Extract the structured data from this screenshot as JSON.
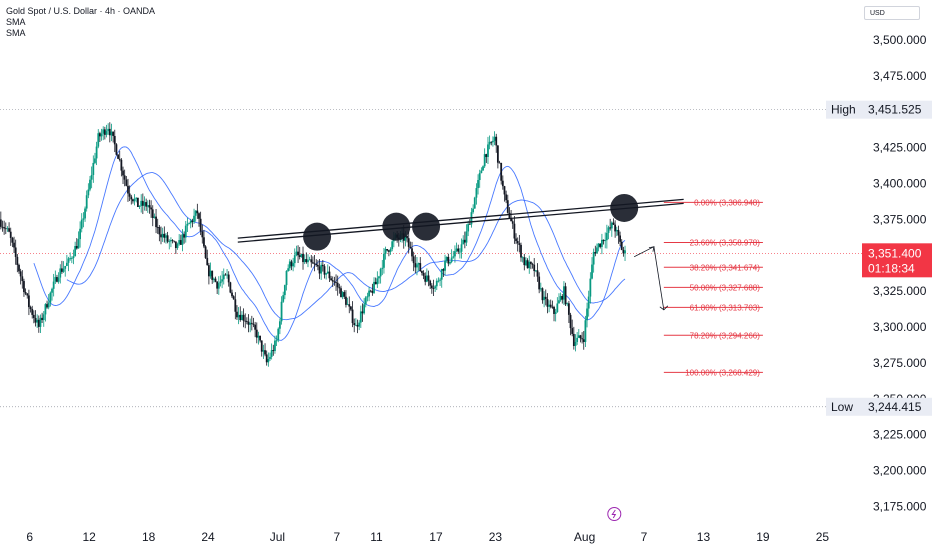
{
  "legend": {
    "title": "Gold Spot / U.S. Dollar · 4h · OANDA",
    "sma1": "SMA",
    "sma2": "SMA"
  },
  "currency": "USD",
  "colors": {
    "up": "#089981",
    "down": "#131722",
    "sma": "#2962ff",
    "fib": "#e53945",
    "current_price_bg": "#f23645",
    "grid": "#9598a1",
    "trendline": "#131722"
  },
  "chart_data": {
    "type": "candlestick",
    "ylim": [
      3162,
      3528
    ],
    "y_ticks": [
      3175,
      3200,
      3225,
      3250,
      3275,
      3300,
      3325,
      3350,
      3375,
      3400,
      3425,
      3450,
      3475,
      3500
    ],
    "y_tick_labels": [
      "3,175.000",
      "3,200.000",
      "3,225.000",
      "3,250.000",
      "3,275.000",
      "3,300.000",
      "3,325.000",
      "3,350.000",
      "3,375.000",
      "3,400.000",
      "3,425.000",
      "3,450.000",
      "3,475.000",
      "3,500.000"
    ],
    "x_range": [
      "2025-06-03",
      "2025-08-29"
    ],
    "x_ticks": [
      {
        "date": "2025-06-06",
        "label": "6"
      },
      {
        "date": "2025-06-12",
        "label": "12"
      },
      {
        "date": "2025-06-18",
        "label": "18"
      },
      {
        "date": "2025-06-24",
        "label": "24"
      },
      {
        "date": "2025-07-01",
        "label": "Jul"
      },
      {
        "date": "2025-07-07",
        "label": "7"
      },
      {
        "date": "2025-07-11",
        "label": "11"
      },
      {
        "date": "2025-07-17",
        "label": "17"
      },
      {
        "date": "2025-07-23",
        "label": "23"
      },
      {
        "date": "2025-08-01",
        "label": "Aug"
      },
      {
        "date": "2025-08-07",
        "label": "7"
      },
      {
        "date": "2025-08-13",
        "label": "13"
      },
      {
        "date": "2025-08-19",
        "label": "19"
      },
      {
        "date": "2025-08-25",
        "label": "25"
      }
    ],
    "price_path": [
      [
        "2025-06-03",
        3375
      ],
      [
        "2025-06-04",
        3365
      ],
      [
        "2025-06-05",
        3340
      ],
      [
        "2025-06-06",
        3315
      ],
      [
        "2025-06-07",
        3300
      ],
      [
        "2025-06-08",
        3320
      ],
      [
        "2025-06-09",
        3338
      ],
      [
        "2025-06-10",
        3345
      ],
      [
        "2025-06-11",
        3360
      ],
      [
        "2025-06-12",
        3395
      ],
      [
        "2025-06-13",
        3432
      ],
      [
        "2025-06-14",
        3440
      ],
      [
        "2025-06-15",
        3420
      ],
      [
        "2025-06-16",
        3395
      ],
      [
        "2025-06-17",
        3385
      ],
      [
        "2025-06-18",
        3385
      ],
      [
        "2025-06-19",
        3368
      ],
      [
        "2025-06-20",
        3360
      ],
      [
        "2025-06-21",
        3355
      ],
      [
        "2025-06-22",
        3370
      ],
      [
        "2025-06-23",
        3380
      ],
      [
        "2025-06-24",
        3340
      ],
      [
        "2025-06-25",
        3330
      ],
      [
        "2025-06-26",
        3335
      ],
      [
        "2025-06-27",
        3310
      ],
      [
        "2025-06-28",
        3305
      ],
      [
        "2025-06-29",
        3295
      ],
      [
        "2025-06-30",
        3275
      ],
      [
        "2025-07-01",
        3290
      ],
      [
        "2025-07-02",
        3340
      ],
      [
        "2025-07-03",
        3350
      ],
      [
        "2025-07-04",
        3345
      ],
      [
        "2025-07-05",
        3342
      ],
      [
        "2025-07-06",
        3338
      ],
      [
        "2025-07-07",
        3330
      ],
      [
        "2025-07-08",
        3318
      ],
      [
        "2025-07-09",
        3300
      ],
      [
        "2025-07-10",
        3318
      ],
      [
        "2025-07-11",
        3330
      ],
      [
        "2025-07-12",
        3352
      ],
      [
        "2025-07-13",
        3362
      ],
      [
        "2025-07-14",
        3362
      ],
      [
        "2025-07-15",
        3345
      ],
      [
        "2025-07-16",
        3335
      ],
      [
        "2025-07-17",
        3328
      ],
      [
        "2025-07-18",
        3345
      ],
      [
        "2025-07-19",
        3350
      ],
      [
        "2025-07-20",
        3360
      ],
      [
        "2025-07-21",
        3390
      ],
      [
        "2025-07-22",
        3420
      ],
      [
        "2025-07-23",
        3432
      ],
      [
        "2025-07-24",
        3390
      ],
      [
        "2025-07-25",
        3365
      ],
      [
        "2025-07-26",
        3345
      ],
      [
        "2025-07-27",
        3340
      ],
      [
        "2025-07-28",
        3318
      ],
      [
        "2025-07-29",
        3310
      ],
      [
        "2025-07-30",
        3325
      ],
      [
        "2025-07-31",
        3290
      ],
      [
        "2025-08-01",
        3293
      ],
      [
        "2025-08-02",
        3352
      ],
      [
        "2025-08-03",
        3362
      ],
      [
        "2025-08-04",
        3372
      ],
      [
        "2025-08-05",
        3351.4
      ]
    ],
    "trendline": {
      "from": [
        "2025-06-27",
        3362
      ],
      "to": [
        "2025-08-11",
        3389
      ]
    },
    "circles": [
      {
        "date": "2025-07-05",
        "price": 3363
      },
      {
        "date": "2025-07-13",
        "price": 3370
      },
      {
        "date": "2025-07-16",
        "price": 3370
      },
      {
        "date": "2025-08-05",
        "price": 3383
      }
    ],
    "hlines": [
      {
        "label": "High",
        "price": 3451.525,
        "price_label": "3,451.525"
      },
      {
        "label": "Low",
        "price": 3244.415,
        "price_label": "3,244.415"
      }
    ],
    "fib_levels": [
      {
        "label": "0.00% (3,386.948)",
        "price": 3386.948
      },
      {
        "label": "23.60% (3,358.978)",
        "price": 3358.978
      },
      {
        "label": "38.20% (3,341.674)",
        "price": 3341.674
      },
      {
        "label": "50.00% (3,327.688)",
        "price": 3327.688
      },
      {
        "label": "61.80% (3,313.703)",
        "price": 3313.703
      },
      {
        "label": "78.20% (3,294.266)",
        "price": 3294.266
      },
      {
        "label": "100.00% (3,268.429)",
        "price": 3268.429
      }
    ],
    "fib_range": [
      "2025-08-09",
      "2025-08-19"
    ],
    "current_price": {
      "value": 3351.4,
      "label": "3,351.400",
      "countdown": "01:18:34"
    },
    "arrow_path": [
      [
        "2025-08-06",
        3349
      ],
      [
        "2025-08-08",
        3356
      ],
      [
        "2025-08-09",
        3312
      ]
    ]
  }
}
